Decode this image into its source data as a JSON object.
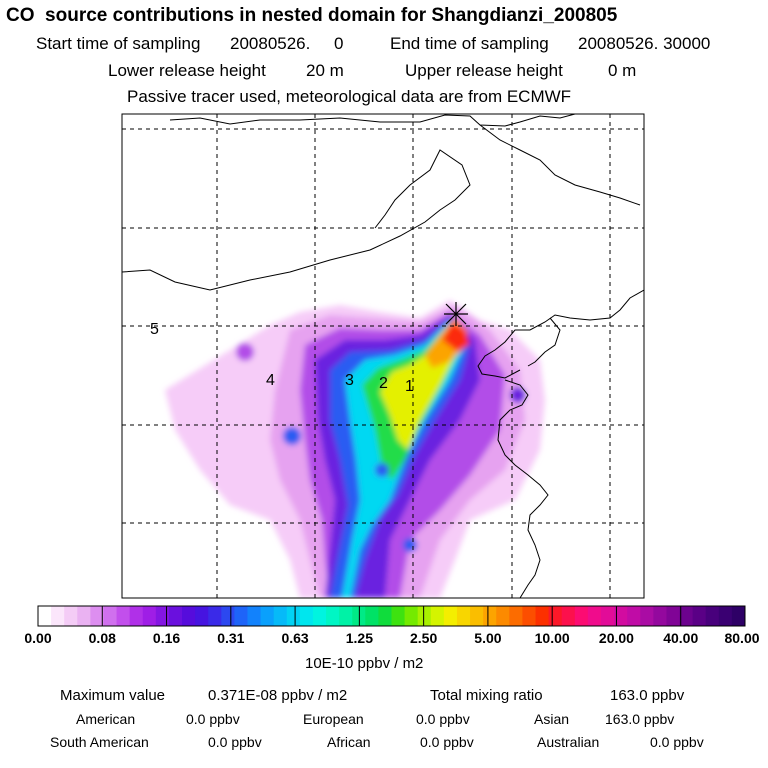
{
  "header": {
    "title": "CO  source contributions in nested domain for Shangdianzi_200805",
    "start_label": "Start time of sampling",
    "start_value": "20080526.     0",
    "end_label": "End time of sampling",
    "end_value": "20080526. 30000",
    "lower_release_label": "Lower release height",
    "lower_release_value": "20 m",
    "upper_release_label": "Upper release height",
    "upper_release_value": "0 m",
    "info": "Passive tracer used, meteorological data are from ECMWF"
  },
  "map": {
    "region_labels": [
      "1",
      "2",
      "3",
      "4",
      "5"
    ],
    "receptor_marker": "station-cross-icon"
  },
  "colorbar": {
    "tick_labels": [
      "0.00",
      "0.08",
      "0.16",
      "0.31",
      "0.63",
      "1.25",
      "2.50",
      "5.00",
      "10.00",
      "20.00",
      "40.00",
      "80.00"
    ],
    "unit": "10E-10 ppbv / m2",
    "colors": [
      "#ffffff",
      "#fbe6fb",
      "#f4ccf6",
      "#eab2f2",
      "#dd8ef0",
      "#d070ee",
      "#c24fec",
      "#b030e8",
      "#9f1ee6",
      "#8416e2",
      "#6a10de",
      "#560cdc",
      "#4614e0",
      "#3a2ae8",
      "#2c48f0",
      "#1e64f8",
      "#1282fc",
      "#0aa0fc",
      "#06baf8",
      "#02d2f4",
      "#00e6ee",
      "#00f4e0",
      "#00f6c4",
      "#00f2a6",
      "#00ea86",
      "#00e266",
      "#10dc3c",
      "#3ee210",
      "#74ea00",
      "#a8f000",
      "#d4f400",
      "#f4ee00",
      "#f8d600",
      "#fabe00",
      "#fca400",
      "#fc8a00",
      "#fc6c00",
      "#fc4e00",
      "#fc3000",
      "#fc1828",
      "#fc104c",
      "#fc0c72",
      "#f00c8c",
      "#e20c98",
      "#d20ca0",
      "#c00ca6",
      "#aa0ca4",
      "#94089e",
      "#800496",
      "#6c028e",
      "#5a0086",
      "#48007c",
      "#3a0072",
      "#2e0066"
    ]
  },
  "footer": {
    "max_label": "Maximum value",
    "max_value": "0.371E-08 ppbv / m2",
    "total_label": "Total mixing ratio",
    "total_value": "163.0 ppbv",
    "contributions": [
      {
        "region": "American",
        "value": "0.0 ppbv"
      },
      {
        "region": "European",
        "value": "0.0 ppbv"
      },
      {
        "region": "Asian",
        "value": "163.0 ppbv"
      },
      {
        "region": "South American",
        "value": "0.0 ppbv"
      },
      {
        "region": "African",
        "value": "0.0 ppbv"
      },
      {
        "region": "Australian",
        "value": "0.0 ppbv"
      }
    ]
  }
}
